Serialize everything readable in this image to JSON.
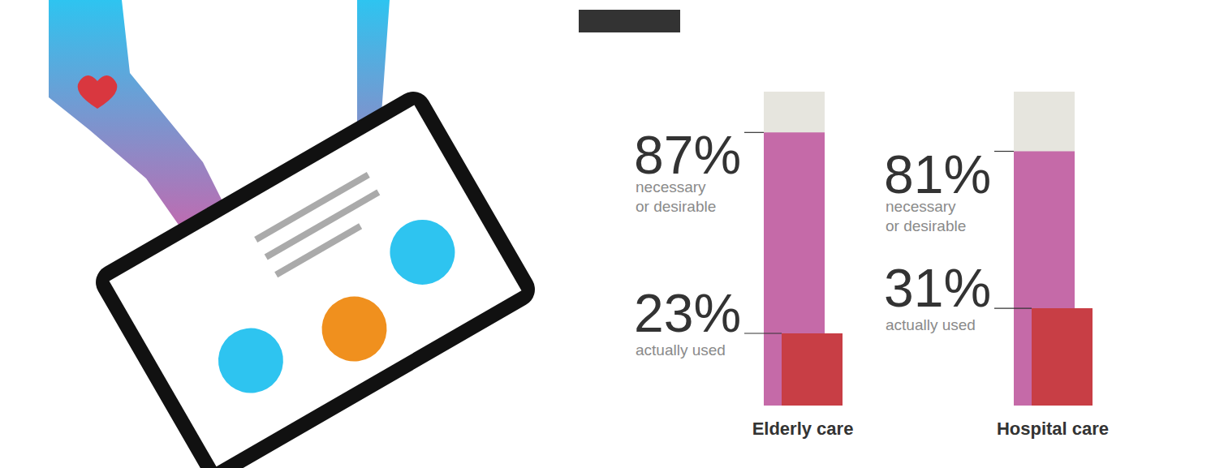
{
  "chart_data": {
    "type": "bar",
    "categories": [
      "Elderly care",
      "Hospital care"
    ],
    "series": [
      {
        "name": "necessary or desirable",
        "color": "#c56aa8",
        "values": [
          87,
          81
        ],
        "value_labels": [
          "87%",
          "81%"
        ]
      },
      {
        "name": "actually used",
        "color": "#c83e45",
        "values": [
          23,
          31
        ],
        "value_labels": [
          "23%",
          "31%"
        ]
      }
    ],
    "ylim": [
      0,
      100
    ],
    "data_labels": true,
    "tick_labels": "x"
  }
}
